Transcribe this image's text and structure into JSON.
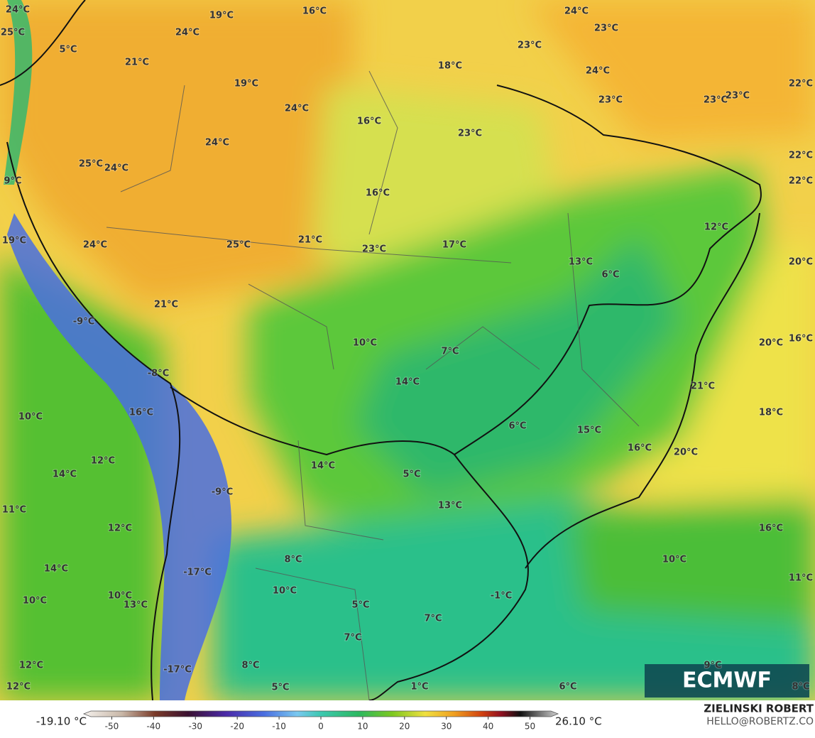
{
  "labels": [
    "24°C",
    "25°C",
    "19°C",
    "16°C",
    "24°C",
    "23°C",
    "24°C",
    "5°C",
    "21°C",
    "23°C",
    "18°C",
    "24°C",
    "22°C",
    "19°C",
    "24°C",
    "23°C",
    "23°C",
    "23°C",
    "16°C",
    "23°C",
    "24°C",
    "25°C",
    "24°C",
    "22°C",
    "9°C",
    "22°C",
    "16°C",
    "12°C",
    "19°C",
    "24°C",
    "25°C",
    "21°C",
    "23°C",
    "17°C",
    "13°C",
    "6°C",
    "20°C",
    "21°C",
    "-9°C",
    "16°C",
    "10°C",
    "7°C",
    "20°C",
    "-8°C",
    "14°C",
    "21°C",
    "16°C",
    "10°C",
    "18°C",
    "6°C",
    "15°C",
    "16°C",
    "20°C",
    "12°C",
    "14°C",
    "14°C",
    "5°C",
    "-9°C",
    "11°C",
    "13°C",
    "12°C",
    "16°C",
    "8°C",
    "10°C",
    "14°C",
    "-17°C",
    "11°C",
    "10°C",
    "10°C",
    "13°C",
    "10°C",
    "5°C",
    "-1°C",
    "7°C",
    "7°C",
    "9°C",
    "12°C",
    "-17°C",
    "8°C",
    "12°C",
    "5°C",
    "1°C",
    "6°C",
    "8°C"
  ],
  "colorbar": {
    "lim": [
      -55,
      55
    ],
    "ticks": [
      -50,
      -40,
      -30,
      -20,
      -10,
      0,
      10,
      20,
      30,
      40,
      50
    ],
    "min_label": "-19.10 °C",
    "max_label": "26.10 °C"
  },
  "logo": "ECMWF",
  "credit": {
    "name": "ZIELINSKI ROBERT",
    "email": "HELLO@ROBERTZ.CO"
  }
}
